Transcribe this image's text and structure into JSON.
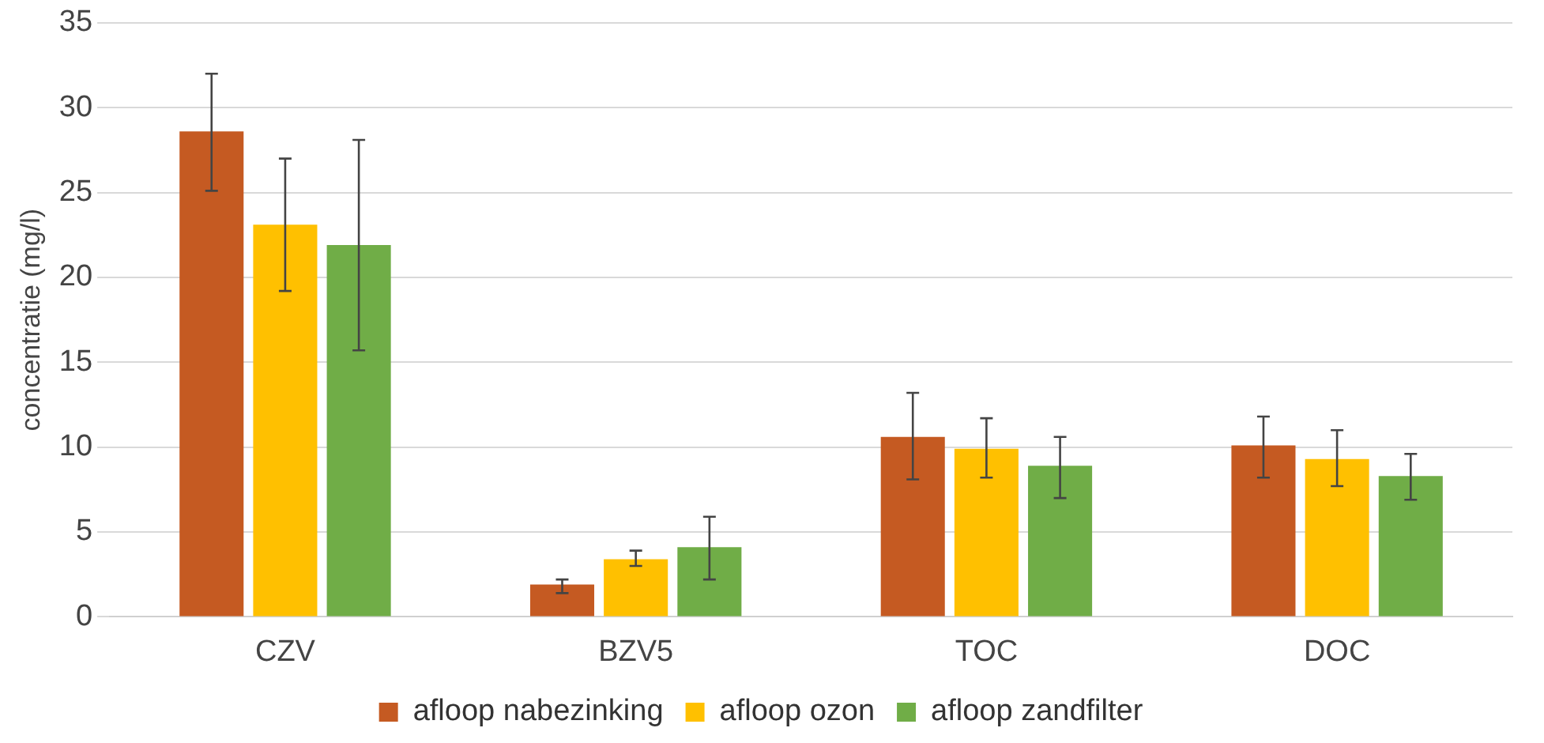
{
  "chart_data": {
    "type": "bar",
    "ylabel": "concentratie (mg/l)",
    "categories": [
      "CZV",
      "BZV5",
      "TOC",
      "DOC"
    ],
    "series": [
      {
        "name": "afloop nabezinking",
        "color": "#c55a22",
        "values": [
          28.6,
          1.9,
          10.6,
          10.1
        ],
        "errors": [
          [
            25.1,
            32.0
          ],
          [
            1.4,
            2.2
          ],
          [
            8.1,
            13.2
          ],
          [
            8.2,
            11.8
          ]
        ]
      },
      {
        "name": "afloop ozon",
        "color": "#ffc000",
        "values": [
          23.1,
          3.4,
          9.9,
          9.3
        ],
        "errors": [
          [
            19.2,
            27.0
          ],
          [
            3.0,
            3.9
          ],
          [
            8.2,
            11.7
          ],
          [
            7.7,
            11.0
          ]
        ]
      },
      {
        "name": "afloop zandfilter",
        "color": "#70ad47",
        "values": [
          21.9,
          4.1,
          8.9,
          8.3
        ],
        "errors": [
          [
            15.7,
            28.1
          ],
          [
            2.2,
            5.9
          ],
          [
            7.0,
            10.6
          ],
          [
            6.9,
            9.6
          ]
        ]
      }
    ],
    "ylim": [
      0,
      35
    ],
    "yticks": [
      0,
      5,
      10,
      15,
      20,
      25,
      30,
      35
    ],
    "grid": "y",
    "legend": "bottom"
  }
}
